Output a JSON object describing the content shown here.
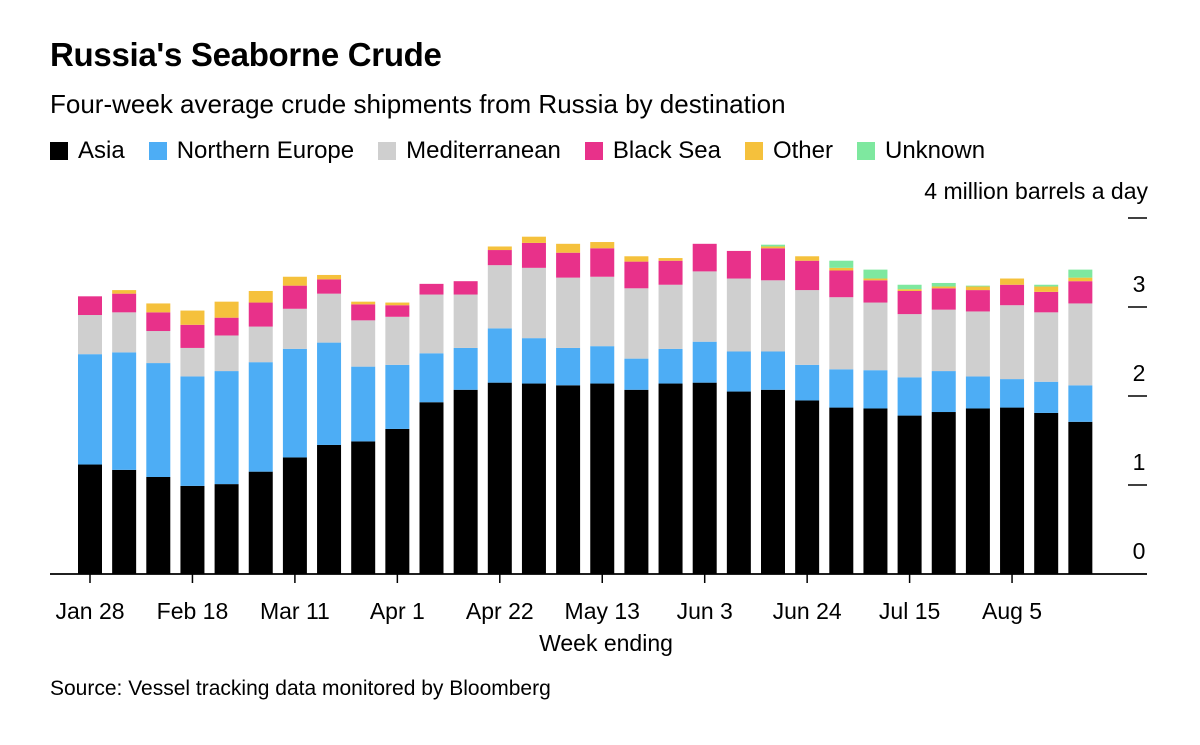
{
  "chart_data": {
    "type": "bar",
    "stacked": true,
    "title": "Russia's Seaborne Crude",
    "subtitle": "Four-week average crude shipments from Russia by destination",
    "unit_label": "4 million barrels a day",
    "xlabel": "Week ending",
    "ylabel": "",
    "ylim": [
      0,
      4
    ],
    "yticks": [
      "0",
      "1",
      "2",
      "3"
    ],
    "xtick_labels": [
      "Jan 28",
      "Feb 18",
      "Mar 11",
      "Apr 1",
      "Apr 22",
      "May 13",
      "Jun 3",
      "Jun 24",
      "Jul 15",
      "Aug 5"
    ],
    "xtick_every": 3,
    "source": "Source: Vessel tracking data monitored by Bloomberg",
    "series": [
      {
        "name": "Asia",
        "color": "#000000",
        "values": [
          1.23,
          1.17,
          1.09,
          0.99,
          1.01,
          1.15,
          1.31,
          1.45,
          1.49,
          1.63,
          1.93,
          2.07,
          2.15,
          2.14,
          2.12,
          2.14,
          2.07,
          2.14,
          2.15,
          2.05,
          2.07,
          1.95,
          1.87,
          1.86,
          1.78,
          1.82,
          1.86,
          1.87,
          1.81,
          1.71
        ]
      },
      {
        "name": "Northern Europe",
        "color": "#4DADF5",
        "values": [
          1.24,
          1.32,
          1.28,
          1.23,
          1.27,
          1.23,
          1.22,
          1.15,
          0.84,
          0.72,
          0.55,
          0.47,
          0.61,
          0.51,
          0.42,
          0.42,
          0.35,
          0.39,
          0.46,
          0.45,
          0.43,
          0.4,
          0.43,
          0.43,
          0.43,
          0.46,
          0.36,
          0.32,
          0.35,
          0.41
        ]
      },
      {
        "name": "Mediterranean",
        "color": "#CFCFCF",
        "values": [
          0.44,
          0.45,
          0.36,
          0.32,
          0.4,
          0.4,
          0.45,
          0.55,
          0.52,
          0.54,
          0.66,
          0.6,
          0.71,
          0.79,
          0.79,
          0.78,
          0.79,
          0.72,
          0.79,
          0.82,
          0.8,
          0.84,
          0.81,
          0.76,
          0.71,
          0.69,
          0.73,
          0.83,
          0.78,
          0.92
        ]
      },
      {
        "name": "Black Sea",
        "color": "#E8318A",
        "values": [
          0.21,
          0.21,
          0.21,
          0.26,
          0.2,
          0.27,
          0.26,
          0.16,
          0.18,
          0.13,
          0.12,
          0.15,
          0.17,
          0.28,
          0.28,
          0.32,
          0.3,
          0.27,
          0.31,
          0.31,
          0.36,
          0.33,
          0.3,
          0.25,
          0.26,
          0.24,
          0.24,
          0.23,
          0.23,
          0.25
        ]
      },
      {
        "name": "Other",
        "color": "#F5C13C",
        "values": [
          0.0,
          0.04,
          0.1,
          0.16,
          0.18,
          0.13,
          0.1,
          0.05,
          0.03,
          0.03,
          0.0,
          0.0,
          0.04,
          0.07,
          0.1,
          0.07,
          0.06,
          0.03,
          0.0,
          0.0,
          0.02,
          0.05,
          0.03,
          0.02,
          0.02,
          0.02,
          0.04,
          0.07,
          0.06,
          0.04
        ]
      },
      {
        "name": "Unknown",
        "color": "#7EE89F",
        "values": [
          0.0,
          0.0,
          0.0,
          0.0,
          0.0,
          0.0,
          0.0,
          0.0,
          0.0,
          0.0,
          0.0,
          0.0,
          0.0,
          0.0,
          0.0,
          0.0,
          0.0,
          0.0,
          0.0,
          0.0,
          0.02,
          0.0,
          0.08,
          0.1,
          0.05,
          0.04,
          0.01,
          0.0,
          0.02,
          0.09
        ]
      }
    ]
  }
}
